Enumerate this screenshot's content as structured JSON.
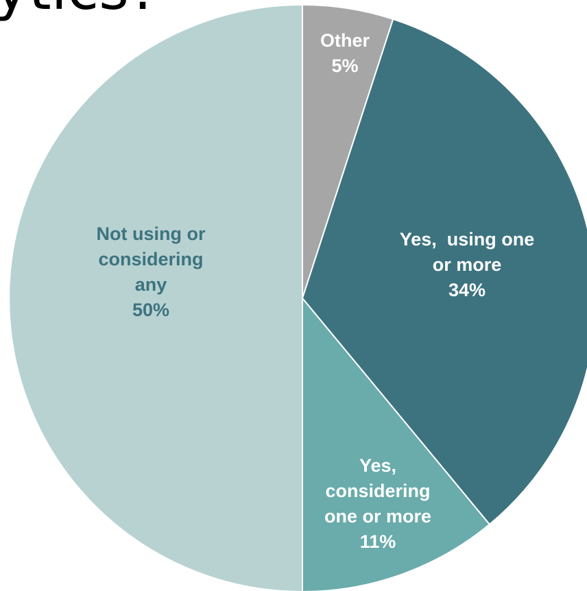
{
  "title_fragment": "ytics?",
  "chart_data": {
    "type": "pie",
    "title": "",
    "slices": [
      {
        "label_lines": [
          "Other"
        ],
        "label": "Other",
        "value": 5,
        "pct_label": "5%",
        "color": "#a6a6a6",
        "label_color": "#ffffff"
      },
      {
        "label_lines": [
          "Yes,  using one",
          "or more"
        ],
        "label": "Yes,  using one or more",
        "value": 34,
        "pct_label": "34%",
        "color": "#3d737f",
        "label_color": "#ffffff"
      },
      {
        "label_lines": [
          "Yes,",
          "considering",
          "one or more"
        ],
        "label": "Yes, considering one or more",
        "value": 11,
        "pct_label": "11%",
        "color": "#6aabab",
        "label_color": "#ffffff"
      },
      {
        "label_lines": [
          "Not using or",
          "considering",
          "any"
        ],
        "label": "Not using or considering any",
        "value": 50,
        "pct_label": "50%",
        "color": "#b8d2d2",
        "label_color": "#3d737f"
      }
    ],
    "start_angle": "12 o'clock",
    "direction": "clockwise",
    "legend": "none"
  }
}
